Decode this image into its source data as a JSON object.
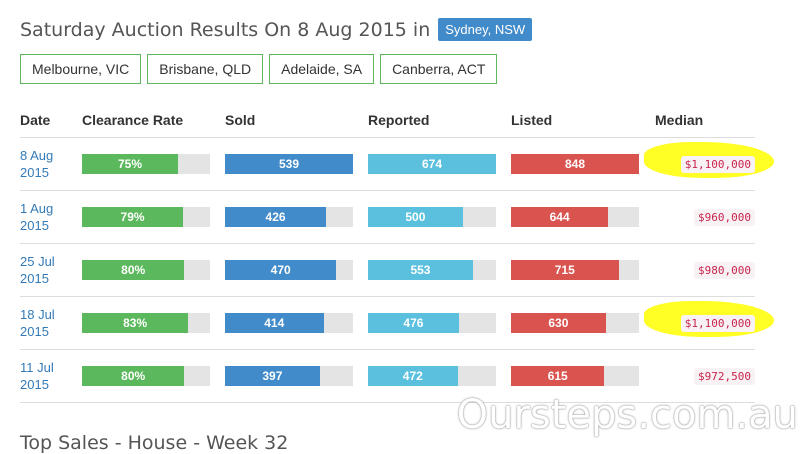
{
  "header": {
    "title": "Saturday Auction Results On 8 Aug 2015 in",
    "current_city": "Sydney, NSW"
  },
  "city_tabs": [
    "Melbourne, VIC",
    "Brisbane, QLD",
    "Adelaide, SA",
    "Canberra, ACT"
  ],
  "table": {
    "headers": [
      "Date",
      "Clearance Rate",
      "Sold",
      "Reported",
      "Listed",
      "Median"
    ],
    "colors": {
      "clearance": "#5cb85c",
      "sold": "#428bca",
      "reported": "#5bc0de",
      "listed": "#d9534f",
      "median_text": "#c7254e",
      "highlight": "#ffff00"
    },
    "rows": [
      {
        "date_line1": "8 Aug",
        "date_line2": "2015",
        "clearance": {
          "label": "75%",
          "fill": 0.75
        },
        "sold": {
          "label": "539",
          "fill": 1.0
        },
        "reported": {
          "label": "674",
          "fill": 1.0
        },
        "listed": {
          "label": "848",
          "fill": 1.0
        },
        "median": "$1,100,000",
        "highlighted": true
      },
      {
        "date_line1": "1 Aug",
        "date_line2": "2015",
        "clearance": {
          "label": "79%",
          "fill": 0.79
        },
        "sold": {
          "label": "426",
          "fill": 0.79
        },
        "reported": {
          "label": "500",
          "fill": 0.74
        },
        "listed": {
          "label": "644",
          "fill": 0.76
        },
        "median": "$960,000",
        "highlighted": false
      },
      {
        "date_line1": "25 Jul",
        "date_line2": "2015",
        "clearance": {
          "label": "80%",
          "fill": 0.8
        },
        "sold": {
          "label": "470",
          "fill": 0.87
        },
        "reported": {
          "label": "553",
          "fill": 0.82
        },
        "listed": {
          "label": "715",
          "fill": 0.84
        },
        "median": "$980,000",
        "highlighted": false
      },
      {
        "date_line1": "18 Jul",
        "date_line2": "2015",
        "clearance": {
          "label": "83%",
          "fill": 0.83
        },
        "sold": {
          "label": "414",
          "fill": 0.77
        },
        "reported": {
          "label": "476",
          "fill": 0.71
        },
        "listed": {
          "label": "630",
          "fill": 0.74
        },
        "median": "$1,100,000",
        "highlighted": true
      },
      {
        "date_line1": "11 Jul",
        "date_line2": "2015",
        "clearance": {
          "label": "80%",
          "fill": 0.8
        },
        "sold": {
          "label": "397",
          "fill": 0.74
        },
        "reported": {
          "label": "472",
          "fill": 0.7
        },
        "listed": {
          "label": "615",
          "fill": 0.73
        },
        "median": "$972,500",
        "highlighted": false
      }
    ]
  },
  "watermark": "Oursteps.com.au",
  "next_section_title": "Top Sales - House - Week 32"
}
